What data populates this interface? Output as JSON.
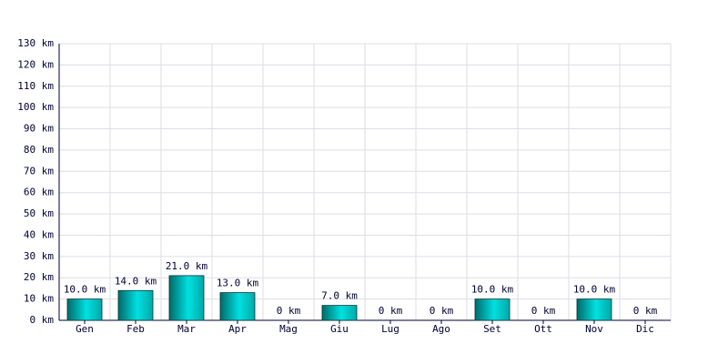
{
  "chart_data": {
    "type": "bar",
    "categories": [
      "Gen",
      "Feb",
      "Mar",
      "Apr",
      "Mag",
      "Giu",
      "Lug",
      "Ago",
      "Set",
      "Ott",
      "Nov",
      "Dic"
    ],
    "values": [
      10,
      14,
      21,
      13,
      0,
      7,
      0,
      0,
      10,
      0,
      10,
      0
    ],
    "value_labels": [
      "10.0 km",
      "14.0 km",
      "21.0 km",
      "13.0 km",
      "0 km",
      "7.0 km",
      "0 km",
      "0 km",
      "10.0 km",
      "0 km",
      "10.0 km",
      "0 km"
    ],
    "color": "#00e0e0",
    "ylim": [
      0,
      130
    ],
    "yticks": [
      {
        "value": 0,
        "label": "0 km"
      },
      {
        "value": 10,
        "label": "10 km"
      },
      {
        "value": 20,
        "label": "20 km"
      },
      {
        "value": 30,
        "label": "30 km"
      },
      {
        "value": 40,
        "label": "40 km"
      },
      {
        "value": 50,
        "label": "50 km"
      },
      {
        "value": 60,
        "label": "60 km"
      },
      {
        "value": 70,
        "label": "70 km"
      },
      {
        "value": 80,
        "label": "80 km"
      },
      {
        "value": 90,
        "label": "90 km"
      },
      {
        "value": 100,
        "label": "100 km"
      },
      {
        "value": 110,
        "label": "110 km"
      },
      {
        "value": 120,
        "label": "120 km"
      },
      {
        "value": 130,
        "label": "130 km"
      }
    ],
    "grid": true
  }
}
